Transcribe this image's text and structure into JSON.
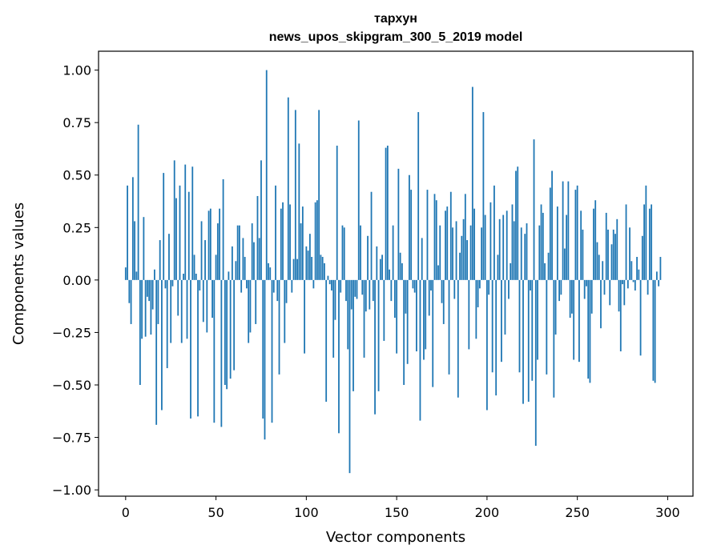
{
  "chart_data": {
    "type": "bar",
    "title": "тархун",
    "subtitle": "news_upos_skipgram_300_5_2019 model",
    "xlabel": "Vector components",
    "ylabel": "Components values",
    "xlim": [
      -15,
      314
    ],
    "ylim": [
      -1.03,
      1.09
    ],
    "xticks": [
      0,
      50,
      100,
      150,
      200,
      250,
      300
    ],
    "xtick_labels": [
      "0",
      "50",
      "100",
      "150",
      "200",
      "250",
      "300"
    ],
    "yticks": [
      1.0,
      0.75,
      0.5,
      0.25,
      0.0,
      -0.25,
      -0.5,
      -0.75,
      -1.0
    ],
    "ytick_labels": [
      "1.00",
      "0.75",
      "0.50",
      "0.25",
      "0.00",
      "−0.25",
      "−0.50",
      "−0.75",
      "−1.00"
    ],
    "grid": false,
    "bar_color": "#1f77b4",
    "values": [
      0.06,
      0.45,
      -0.11,
      -0.21,
      0.49,
      0.28,
      0.04,
      0.74,
      -0.5,
      -0.28,
      0.3,
      -0.27,
      -0.08,
      -0.1,
      -0.26,
      -0.14,
      0.05,
      -0.69,
      -0.21,
      0.19,
      -0.62,
      0.51,
      -0.04,
      -0.42,
      0.22,
      -0.3,
      -0.03,
      0.57,
      0.39,
      -0.17,
      0.45,
      -0.3,
      0.03,
      0.55,
      -0.28,
      0.42,
      -0.66,
      0.54,
      0.12,
      0.03,
      -0.65,
      -0.05,
      0.28,
      -0.2,
      0.19,
      -0.25,
      0.33,
      0.34,
      -0.18,
      -0.68,
      0.12,
      0.27,
      0.34,
      -0.7,
      0.48,
      -0.5,
      -0.52,
      0.04,
      -0.47,
      0.16,
      -0.43,
      0.09,
      0.26,
      0.26,
      -0.06,
      0.2,
      0.11,
      -0.04,
      -0.3,
      -0.25,
      0.27,
      0.18,
      -0.21,
      0.4,
      0.2,
      0.57,
      -0.66,
      -0.76,
      1.0,
      0.08,
      0.06,
      -0.68,
      -0.06,
      0.45,
      -0.1,
      -0.45,
      0.34,
      0.37,
      -0.3,
      -0.11,
      0.87,
      0.36,
      -0.06,
      0.1,
      0.81,
      0.1,
      0.65,
      0.27,
      0.35,
      -0.35,
      0.16,
      0.14,
      0.22,
      0.11,
      -0.04,
      0.37,
      0.38,
      0.81,
      0.12,
      0.11,
      0.08,
      -0.58,
      0.02,
      -0.02,
      -0.05,
      -0.37,
      -0.19,
      0.64,
      -0.73,
      -0.06,
      0.26,
      0.25,
      -0.1,
      -0.33,
      -0.92,
      -0.14,
      -0.53,
      -0.08,
      -0.09,
      0.76,
      0.26,
      -0.07,
      -0.37,
      -0.15,
      0.21,
      -0.14,
      0.42,
      -0.1,
      -0.64,
      0.16,
      -0.53,
      0.1,
      0.12,
      -0.29,
      0.63,
      0.64,
      0.05,
      -0.1,
      0.26,
      -0.18,
      -0.35,
      0.53,
      0.13,
      0.08,
      -0.5,
      -0.16,
      -0.4,
      0.5,
      0.43,
      -0.04,
      -0.06,
      -0.34,
      0.8,
      -0.67,
      0.2,
      -0.38,
      -0.33,
      0.43,
      -0.17,
      -0.05,
      -0.51,
      0.41,
      0.38,
      0.07,
      0.26,
      -0.11,
      -0.21,
      0.33,
      0.35,
      -0.45,
      0.42,
      0.25,
      -0.09,
      0.28,
      -0.56,
      0.13,
      0.21,
      0.29,
      0.41,
      0.19,
      -0.33,
      0.26,
      0.92,
      0.34,
      -0.28,
      -0.13,
      -0.04,
      0.25,
      0.8,
      0.31,
      -0.62,
      -0.07,
      0.37,
      -0.44,
      0.45,
      -0.55,
      0.12,
      0.29,
      -0.39,
      0.31,
      -0.26,
      0.33,
      -0.09,
      0.08,
      0.36,
      0.28,
      0.52,
      0.54,
      -0.44,
      0.25,
      -0.59,
      0.22,
      0.27,
      -0.58,
      -0.05,
      -0.48,
      0.67,
      -0.79,
      -0.38,
      0.26,
      0.36,
      0.32,
      0.08,
      -0.45,
      0.13,
      0.44,
      0.52,
      -0.56,
      -0.26,
      0.35,
      -0.1,
      -0.07,
      0.47,
      0.15,
      0.31,
      0.47,
      -0.18,
      -0.16,
      -0.38,
      0.43,
      0.45,
      -0.39,
      0.33,
      0.24,
      -0.09,
      -0.03,
      -0.47,
      -0.49,
      -0.16,
      0.34,
      0.38,
      0.18,
      0.12,
      -0.23,
      0.09,
      -0.07,
      0.32,
      0.24,
      -0.12,
      0.17,
      0.24,
      0.22,
      0.29,
      -0.15,
      -0.34,
      -0.02,
      -0.12,
      0.36,
      -0.04,
      0.25,
      0.09,
      -0.01,
      -0.05,
      0.11,
      0.05,
      -0.36,
      0.21,
      0.36,
      0.45,
      -0.07,
      0.34,
      0.36,
      -0.48,
      -0.49,
      0.04,
      -0.03,
      0.11
    ]
  }
}
